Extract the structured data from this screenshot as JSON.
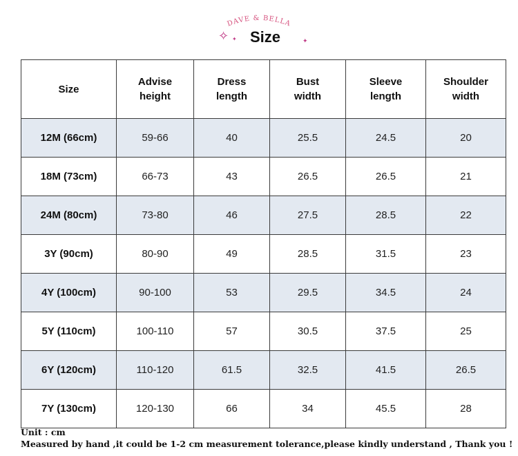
{
  "brand": {
    "logo_text": "DAVE & BELLA",
    "title": "Size",
    "accent_color": "#c03a86"
  },
  "table": {
    "headers": [
      [
        "Size"
      ],
      [
        "Advise",
        "height"
      ],
      [
        "Dress",
        "length"
      ],
      [
        "Bust",
        "width"
      ],
      [
        "Sleeve",
        "length"
      ],
      [
        "Shoulder",
        "width"
      ]
    ],
    "rows": [
      [
        "12M (66cm)",
        "59-66",
        "40",
        "25.5",
        "24.5",
        "20"
      ],
      [
        "18M (73cm)",
        "66-73",
        "43",
        "26.5",
        "26.5",
        "21"
      ],
      [
        "24M (80cm)",
        "73-80",
        "46",
        "27.5",
        "28.5",
        "22"
      ],
      [
        "3Y (90cm)",
        "80-90",
        "49",
        "28.5",
        "31.5",
        "23"
      ],
      [
        "4Y (100cm)",
        "90-100",
        "53",
        "29.5",
        "34.5",
        "24"
      ],
      [
        "5Y (110cm)",
        "100-110",
        "57",
        "30.5",
        "37.5",
        "25"
      ],
      [
        "6Y (120cm)",
        "110-120",
        "61.5",
        "32.5",
        "41.5",
        "26.5"
      ],
      [
        "7Y (130cm)",
        "120-130",
        "66",
        "34",
        "45.5",
        "28"
      ]
    ],
    "shaded_rows": [
      0,
      2,
      4,
      6
    ],
    "shade_color": "#e3e9f1",
    "border_color": "#3a3a3a"
  },
  "notes": {
    "unit": "Unit : cm",
    "measurement": "Measured by hand ,it could be 1-2 cm measurement tolerance,please kindly understand , Thank you !"
  }
}
